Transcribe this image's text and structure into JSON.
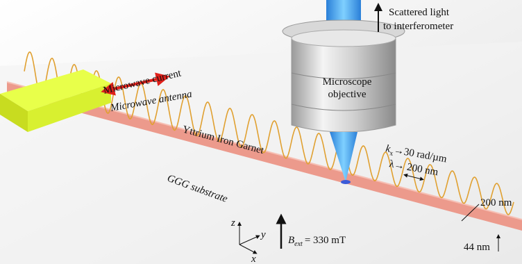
{
  "title_labels": {
    "scattered_light": [
      "Scattered light",
      "to interferometer"
    ],
    "microwave_current": "Microwave current",
    "microwave_antenna": "Microwave antenna",
    "microscope": [
      "Microscope",
      "objective"
    ],
    "yig": "Yttrium Iron Garnet",
    "substrate": "GGG substrate",
    "wavevector": {
      "symbol": "k",
      "subscript": "x",
      "text": "→30 rad/µm"
    },
    "wavelength": "λ→ 200 nm",
    "width": "200 nm",
    "thickness": "44 nm",
    "field": {
      "symbol": "B",
      "subscript": "ext",
      "text": "= 330 mT"
    },
    "axes": {
      "z": "z",
      "y": "y",
      "x": "x"
    }
  }
}
